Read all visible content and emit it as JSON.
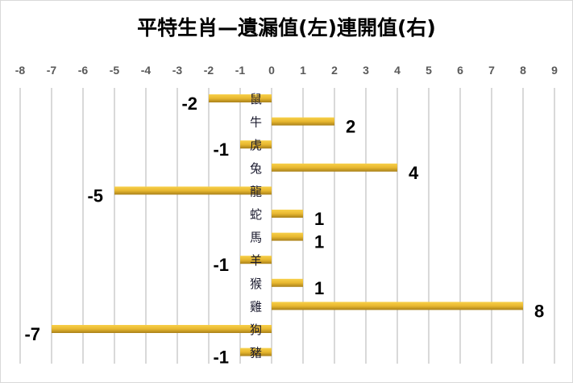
{
  "chart_data": {
    "type": "bar",
    "orientation": "horizontal",
    "title": "平特生肖—遺漏值(左)連開值(右)",
    "categories": [
      "鼠",
      "牛",
      "虎",
      "兔",
      "龍",
      "蛇",
      "馬",
      "羊",
      "猴",
      "雞",
      "狗",
      "豬"
    ],
    "values": [
      -2,
      2,
      -1,
      4,
      -5,
      1,
      1,
      -1,
      1,
      8,
      -7,
      -1
    ],
    "xlim": [
      -8,
      9
    ],
    "x_ticks": [
      -8,
      -7,
      -6,
      -5,
      -4,
      -3,
      -2,
      -1,
      0,
      1,
      2,
      3,
      4,
      5,
      6,
      7,
      8,
      9
    ],
    "x_axis_position": "top",
    "grid": true,
    "bar_color": "#e8b830",
    "data_labels": true
  }
}
